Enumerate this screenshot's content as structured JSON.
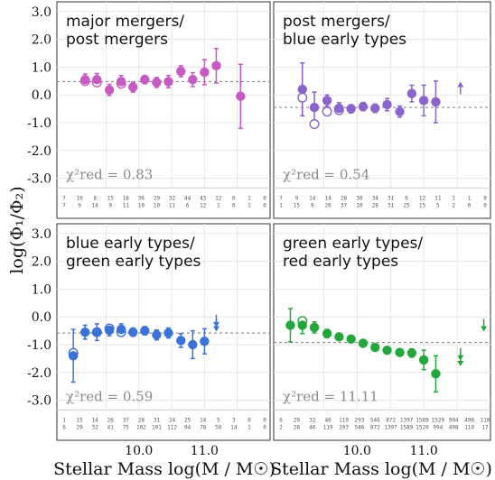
{
  "figure": {
    "ylabel": "log(Φ₁/Φ₂)",
    "xlabel": "Stellar Mass log(M / M☉)",
    "yticks": [
      "3.0",
      "2.0",
      "1.0",
      "0.0",
      "-1.0",
      "-2.0",
      "-3.0"
    ],
    "xticks": [
      "10.0",
      "11.0"
    ]
  },
  "chart_data": [
    {
      "type": "scatter",
      "title_lines": [
        "major mergers/",
        "post mergers"
      ],
      "color": "#c659c2",
      "reference_level": 0.48,
      "chi2_label": "χ²red = 0.83",
      "filled": [
        {
          "x": 9.18,
          "y": 0.55,
          "err": 0.2
        },
        {
          "x": 9.36,
          "y": 0.55,
          "err": 0.22
        },
        {
          "x": 9.55,
          "y": 0.18,
          "err": 0.2
        },
        {
          "x": 9.73,
          "y": 0.48,
          "err": 0.22
        },
        {
          "x": 9.91,
          "y": 0.28,
          "err": 0.18
        },
        {
          "x": 10.09,
          "y": 0.55,
          "err": 0.15
        },
        {
          "x": 10.27,
          "y": 0.45,
          "err": 0.18
        },
        {
          "x": 10.45,
          "y": 0.48,
          "err": 0.22
        },
        {
          "x": 10.64,
          "y": 0.85,
          "err": 0.2
        },
        {
          "x": 10.82,
          "y": 0.55,
          "err": 0.25
        },
        {
          "x": 11.0,
          "y": 0.82,
          "err": 0.45
        },
        {
          "x": 11.18,
          "y": 1.05,
          "err": 0.62
        },
        {
          "x": 11.55,
          "y": -0.05,
          "err": 1.15
        }
      ],
      "open": [
        {
          "x": 9.18,
          "y": 0.5
        },
        {
          "x": 9.36,
          "y": 0.45
        },
        {
          "x": 9.73,
          "y": 0.4
        }
      ],
      "arrows": [],
      "counts_top": [
        "7",
        "10",
        "8",
        "15",
        "18",
        "36",
        "29",
        "32",
        "44",
        "43",
        "12",
        "0",
        "1",
        "0"
      ],
      "counts_bottom": [
        "7",
        "9",
        "14",
        "9",
        "11",
        "10",
        "10",
        "11",
        "6",
        "12",
        "1",
        "0",
        "1",
        "0"
      ]
    },
    {
      "type": "scatter",
      "title_lines": [
        "post mergers/",
        "blue early types"
      ],
      "color": "#8a64cc",
      "reference_level": -0.45,
      "chi2_label": "χ²red = 0.54",
      "filled": [
        {
          "x": 9.18,
          "y": 0.2,
          "err": 0.95
        },
        {
          "x": 9.36,
          "y": -0.45,
          "err": 0.55
        },
        {
          "x": 9.55,
          "y": -0.2,
          "err": 0.2
        },
        {
          "x": 9.73,
          "y": -0.48,
          "err": 0.2
        },
        {
          "x": 9.91,
          "y": -0.5,
          "err": 0.15
        },
        {
          "x": 10.09,
          "y": -0.42,
          "err": 0.15
        },
        {
          "x": 10.27,
          "y": -0.48,
          "err": 0.15
        },
        {
          "x": 10.45,
          "y": -0.35,
          "err": 0.22
        },
        {
          "x": 10.64,
          "y": -0.6,
          "err": 0.2
        },
        {
          "x": 10.82,
          "y": 0.05,
          "err": 0.3
        },
        {
          "x": 11.0,
          "y": -0.2,
          "err": 0.55
        },
        {
          "x": 11.18,
          "y": -0.25,
          "err": 0.75
        }
      ],
      "open": [
        {
          "x": 9.18,
          "y": -0.1
        },
        {
          "x": 9.36,
          "y": -1.05
        },
        {
          "x": 9.55,
          "y": -0.6
        },
        {
          "x": 9.73,
          "y": -0.55
        }
      ],
      "arrows": [
        {
          "x": 11.55,
          "y": 0.25,
          "dir": "up"
        }
      ],
      "counts_top": [
        "7",
        "9",
        "14",
        "14",
        "28",
        "30",
        "34",
        "31",
        "6",
        "12",
        "11",
        "1",
        "1",
        "0"
      ],
      "counts_bottom": [
        "1",
        "15",
        "9",
        "26",
        "37",
        "10",
        "28",
        "31",
        "25",
        "15",
        "5",
        "2",
        "0",
        "0"
      ]
    },
    {
      "type": "scatter",
      "title_lines": [
        "blue early types/",
        "green early types"
      ],
      "color": "#3a72d8",
      "reference_level": -0.58,
      "chi2_label": "χ²red = 0.59",
      "filled": [
        {
          "x": 9.0,
          "y": -1.4,
          "err": 0.95
        },
        {
          "x": 9.18,
          "y": -0.55,
          "err": 0.25
        },
        {
          "x": 9.36,
          "y": -0.55,
          "err": 0.3
        },
        {
          "x": 9.55,
          "y": -0.48,
          "err": 0.2
        },
        {
          "x": 9.73,
          "y": -0.45,
          "err": 0.2
        },
        {
          "x": 9.91,
          "y": -0.55,
          "err": 0.15
        },
        {
          "x": 10.09,
          "y": -0.5,
          "err": 0.15
        },
        {
          "x": 10.27,
          "y": -0.65,
          "err": 0.18
        },
        {
          "x": 10.45,
          "y": -0.58,
          "err": 0.18
        },
        {
          "x": 10.64,
          "y": -0.85,
          "err": 0.25
        },
        {
          "x": 10.82,
          "y": -1.0,
          "err": 0.5
        },
        {
          "x": 11.0,
          "y": -0.88,
          "err": 0.45
        }
      ],
      "open": [
        {
          "x": 9.0,
          "y": -1.3
        },
        {
          "x": 9.36,
          "y": -0.55
        },
        {
          "x": 9.55,
          "y": -0.42
        },
        {
          "x": 9.73,
          "y": -0.55
        }
      ],
      "arrows": [
        {
          "x": 11.18,
          "y": -0.15,
          "dir": "down"
        },
        {
          "x": 11.18,
          "y": -0.3,
          "dir": "down"
        }
      ],
      "counts_top": [
        "1",
        "15",
        "14",
        "26",
        "37",
        "28",
        "31",
        "24",
        "25",
        "14",
        "5",
        "3",
        "0",
        "0"
      ],
      "counts_bottom": [
        "6",
        "29",
        "32",
        "41",
        "75",
        "102",
        "101",
        "112",
        "94",
        "78",
        "50",
        "14",
        "1",
        "0"
      ]
    },
    {
      "type": "scatter",
      "title_lines": [
        "green early types/",
        "red early types"
      ],
      "color": "#22a83a",
      "reference_level": -0.92,
      "chi2_label": "χ²red = 11.11",
      "filled": [
        {
          "x": 9.0,
          "y": -0.3,
          "err": 0.6
        },
        {
          "x": 9.18,
          "y": -0.3,
          "err": 0.3
        },
        {
          "x": 9.36,
          "y": -0.38,
          "err": 0.2
        },
        {
          "x": 9.55,
          "y": -0.6,
          "err": 0.15
        },
        {
          "x": 9.73,
          "y": -0.72,
          "err": 0.12
        },
        {
          "x": 9.91,
          "y": -0.8,
          "err": 0.1
        },
        {
          "x": 10.09,
          "y": -0.95,
          "err": 0.1
        },
        {
          "x": 10.27,
          "y": -1.1,
          "err": 0.1
        },
        {
          "x": 10.45,
          "y": -1.2,
          "err": 0.1
        },
        {
          "x": 10.64,
          "y": -1.28,
          "err": 0.12
        },
        {
          "x": 10.82,
          "y": -1.3,
          "err": 0.15
        },
        {
          "x": 11.0,
          "y": -1.55,
          "err": 0.35
        },
        {
          "x": 11.18,
          "y": -2.05,
          "err": 0.65
        }
      ],
      "open": [
        {
          "x": 9.18,
          "y": -0.15
        }
      ],
      "arrows": [
        {
          "x": 11.55,
          "y": -1.35,
          "dir": "down"
        },
        {
          "x": 11.55,
          "y": -1.55,
          "dir": "down"
        },
        {
          "x": 11.9,
          "y": -0.3,
          "dir": "down"
        }
      ],
      "counts_top": [
        "6",
        "29",
        "32",
        "46",
        "119",
        "293",
        "546",
        "872",
        "1397",
        "1589",
        "1520",
        "994",
        "498",
        "110"
      ],
      "counts_bottom": [
        "2",
        "28",
        "46",
        "119",
        "293",
        "546",
        "872",
        "1397",
        "1589",
        "1520",
        "994",
        "498",
        "110",
        "17"
      ]
    }
  ]
}
